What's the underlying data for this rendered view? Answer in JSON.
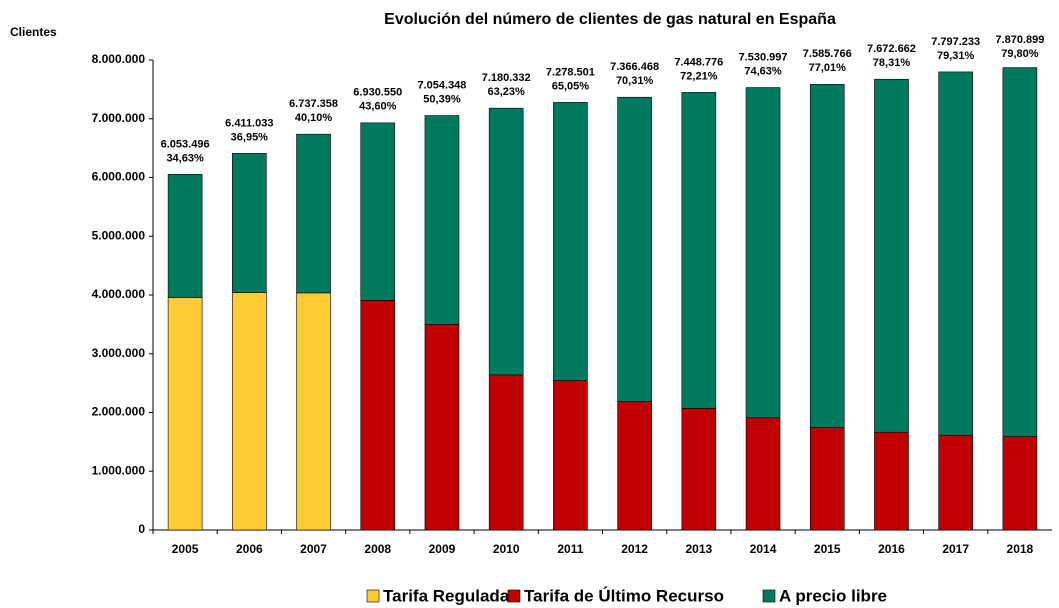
{
  "chart_data": {
    "type": "stacked_bar",
    "title": "Evolución del número de clientes de gas natural en España",
    "y_axis_label": "Clientes",
    "categories": [
      "2005",
      "2006",
      "2007",
      "2008",
      "2009",
      "2010",
      "2011",
      "2012",
      "2013",
      "2014",
      "2015",
      "2016",
      "2017",
      "2018"
    ],
    "series": [
      {
        "name": "Tarifa Regulada",
        "color": "#ffcc33",
        "values": [
          3957170,
          4042156,
          4035677,
          null,
          null,
          null,
          null,
          null,
          null,
          null,
          null,
          null,
          null,
          null
        ]
      },
      {
        "name": "Tarifa de Último Recurso",
        "color": "#c00000",
        "values": [
          null,
          null,
          null,
          3908830,
          3499662,
          2640208,
          2543836,
          2187102,
          2070015,
          1910614,
          1743968,
          1664200,
          1613347,
          1589922
        ]
      },
      {
        "name": "A precio libre",
        "color": "#007a5e",
        "values": [
          2096326,
          2368877,
          2701681,
          3021720,
          3554686,
          4540124,
          4734665,
          5179366,
          5378761,
          5620383,
          5841798,
          6008462,
          6183886,
          6280977
        ]
      }
    ],
    "totals": [
      6053496,
      6411033,
      6737358,
      6930550,
      7054348,
      7180332,
      7278501,
      7366468,
      7448776,
      7530997,
      7585766,
      7672662,
      7797233,
      7870899
    ],
    "total_labels": [
      "6.053.496",
      "6.411.033",
      "6.737.358",
      "6.930.550",
      "7.054.348",
      "7.180.332",
      "7.278.501",
      "7.366.468",
      "7.448.776",
      "7.530.997",
      "7.585.766",
      "7.672.662",
      "7.797.233",
      "7.870.899"
    ],
    "share_labels": [
      "34,63%",
      "36,95%",
      "40,10%",
      "43,60%",
      "50,39%",
      "63,23%",
      "65,05%",
      "70,31%",
      "72,21%",
      "74,63%",
      "77,01%",
      "78,31%",
      "79,31%",
      "79,80%"
    ],
    "ylim": [
      0,
      8000000
    ],
    "yticks": [
      0,
      {
        "value": 1000000,
        "label": "1.000.000"
      },
      {
        "value": 2000000,
        "label": "2.000.000"
      },
      {
        "value": 3000000,
        "label": "3.000.000"
      },
      {
        "value": 4000000,
        "label": "4.000.000"
      },
      {
        "value": 5000000,
        "label": "5.000.000"
      },
      {
        "value": 6000000,
        "label": "6.000.000"
      },
      {
        "value": 7000000,
        "label": "7.000.000"
      },
      {
        "value": 8000000,
        "label": "8.000.000"
      }
    ],
    "legend": "bottom"
  }
}
